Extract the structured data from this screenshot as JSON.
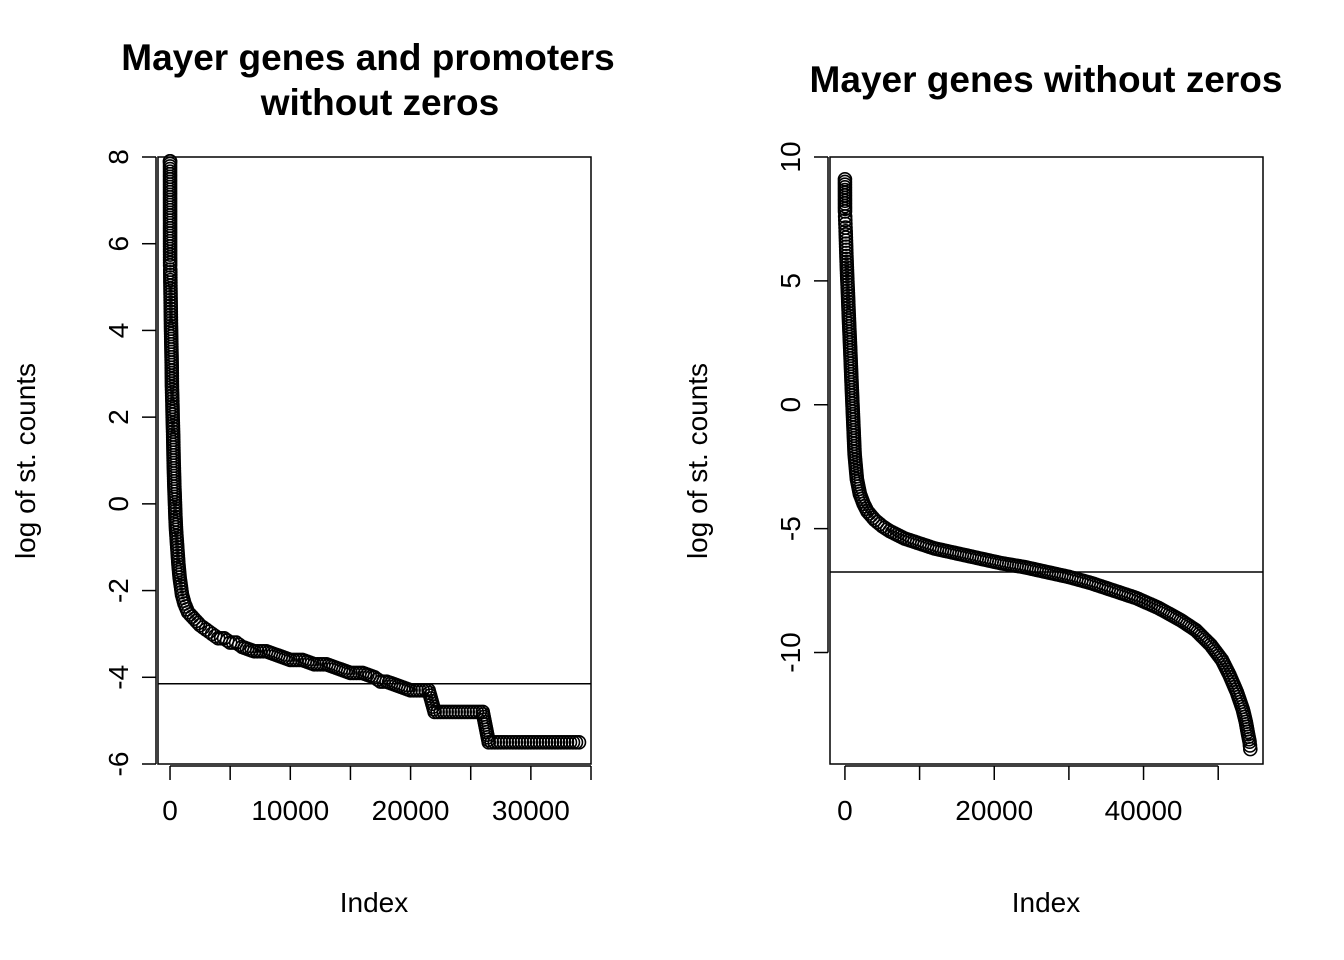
{
  "chart_data": [
    {
      "type": "scatter",
      "title_lines": [
        "Mayer genes and promoters",
        "without zeros"
      ],
      "xlabel": "Index",
      "ylabel": "log of st. counts",
      "xlim": [
        -1000,
        35000
      ],
      "ylim": [
        -6,
        8.0
      ],
      "x_ticks": [
        0,
        10000,
        20000,
        30000
      ],
      "x_tick_labels": [
        "0",
        "10000",
        "20000",
        "30000"
      ],
      "y_ticks": [
        -6,
        -4,
        -2,
        0,
        2,
        4,
        6,
        8
      ],
      "y_tick_labels": [
        "-6",
        "-4",
        "-2",
        "0",
        "2",
        "4",
        "6",
        "8"
      ],
      "hline": -4.15,
      "marker": "open-circle",
      "series": [
        {
          "x": [
            0,
            1,
            5,
            10,
            20,
            30,
            40,
            60,
            80,
            100,
            120,
            140,
            160,
            180,
            200,
            220,
            240,
            260,
            280,
            300,
            330,
            360,
            400,
            450,
            500,
            600,
            700,
            800,
            900,
            1000,
            1200,
            1500,
            2000,
            2500,
            3000,
            3500,
            4000,
            4500,
            5000,
            5500,
            6000,
            7000,
            8000,
            9000,
            10000,
            11000,
            12000,
            13000,
            14000,
            15000,
            16000,
            17000,
            17500,
            18000,
            19000,
            20000,
            21000,
            21500,
            22000,
            23000,
            24000,
            25000,
            26000,
            26500,
            27000,
            28000,
            29000,
            30000,
            31000,
            32000,
            33000,
            34000
          ],
          "y": [
            7.9,
            7.9,
            6.0,
            5.5,
            5.4,
            5.1,
            4.9,
            4.5,
            4.1,
            3.8,
            3.5,
            3.2,
            2.7,
            2.5,
            2.3,
            2.0,
            1.8,
            1.6,
            1.3,
            1.0,
            0.7,
            0.4,
            0.1,
            -0.3,
            -0.6,
            -1.0,
            -1.4,
            -1.7,
            -1.9,
            -2.1,
            -2.3,
            -2.5,
            -2.65,
            -2.8,
            -2.9,
            -3.0,
            -3.1,
            -3.1,
            -3.2,
            -3.2,
            -3.3,
            -3.4,
            -3.4,
            -3.5,
            -3.6,
            -3.6,
            -3.7,
            -3.7,
            -3.8,
            -3.9,
            -3.9,
            -4.0,
            -4.1,
            -4.1,
            -4.2,
            -4.3,
            -4.3,
            -4.3,
            -4.8,
            -4.8,
            -4.8,
            -4.8,
            -4.8,
            -5.5,
            -5.5,
            -5.5,
            -5.5,
            -5.5,
            -5.5,
            -5.5,
            -5.5,
            -5.5
          ]
        }
      ]
    },
    {
      "type": "scatter",
      "title_lines": [
        "Mayer genes without zeros"
      ],
      "xlabel": "Index",
      "ylabel": "log of st. counts",
      "xlim": [
        -2000,
        56000
      ],
      "ylim": [
        -14.5,
        10
      ],
      "x_ticks": [
        0,
        20000,
        40000
      ],
      "x_tick_labels": [
        "0",
        "20000",
        "40000"
      ],
      "y_ticks": [
        -10,
        -5,
        0,
        5,
        10
      ],
      "y_tick_labels": [
        "-10",
        "-5",
        "0",
        "5",
        "10"
      ],
      "hline": -6.75,
      "marker": "open-circle",
      "series": [
        {
          "x": [
            0,
            10,
            30,
            60,
            100,
            150,
            200,
            300,
            400,
            500,
            700,
            900,
            1100,
            1300,
            1600,
            2000,
            2500,
            3000,
            4000,
            5000,
            6000,
            8000,
            10000,
            12000,
            15000,
            18000,
            21000,
            24000,
            27000,
            30000,
            33000,
            36000,
            39000,
            42000,
            45000,
            47000,
            49000,
            50500,
            51500,
            52500,
            53300,
            53700,
            54000,
            54200,
            54300
          ],
          "y": [
            9.1,
            7.8,
            7.6,
            7.3,
            7.0,
            6.5,
            6.0,
            5.2,
            4.5,
            3.7,
            2.3,
            0.8,
            -0.6,
            -2.0,
            -3.0,
            -3.6,
            -4.0,
            -4.3,
            -4.65,
            -4.9,
            -5.1,
            -5.4,
            -5.6,
            -5.8,
            -6.0,
            -6.2,
            -6.4,
            -6.55,
            -6.75,
            -6.95,
            -7.2,
            -7.5,
            -7.8,
            -8.2,
            -8.7,
            -9.1,
            -9.7,
            -10.3,
            -10.9,
            -11.6,
            -12.3,
            -12.8,
            -13.3,
            -13.6,
            -13.9
          ]
        }
      ]
    }
  ],
  "plots_layout_note": ""
}
